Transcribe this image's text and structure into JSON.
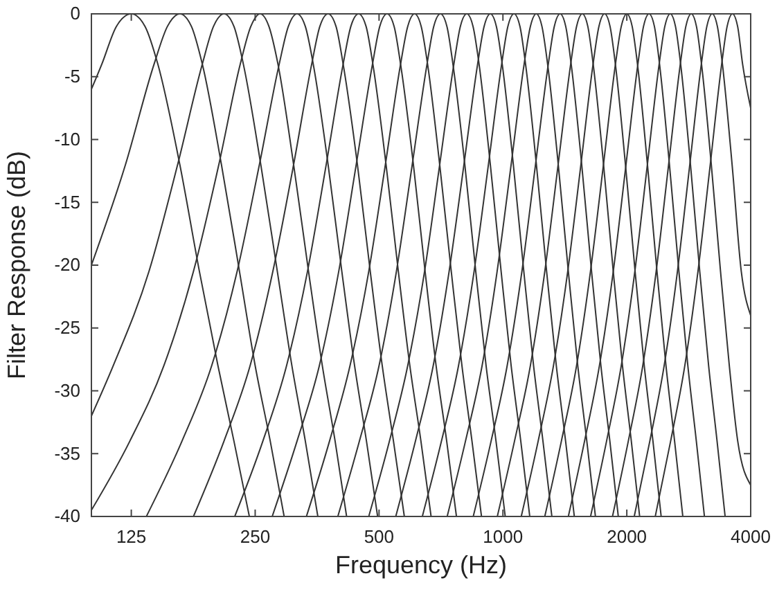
{
  "chart_data": {
    "type": "line",
    "xlabel": "Frequency (Hz)",
    "ylabel": "Filter Response (dB)",
    "log": "x",
    "xlim": [
      100,
      4000
    ],
    "xticks": [
      125,
      250,
      500,
      1000,
      2000,
      4000
    ],
    "ylim": [
      -40,
      0
    ],
    "yticks": [
      -40,
      -35,
      -30,
      -25,
      -20,
      -15,
      -10,
      -5,
      0
    ],
    "line_style": "solid",
    "series": [
      {
        "color": "#333333",
        "x": [
          100,
          106,
          115,
          125,
          135,
          145,
          164,
          183,
          203,
          222,
          242
        ],
        "values": [
          -6,
          -4,
          -1,
          0,
          -1,
          -4,
          -12,
          -20.5,
          -28,
          -34,
          -40
        ]
      },
      {
        "color": "#333333",
        "x": [
          100,
          121,
          142,
          153,
          164,
          175,
          186,
          207,
          229,
          250,
          272,
          294
        ],
        "values": [
          -20,
          -12,
          -4,
          -1,
          0,
          -1,
          -4,
          -12,
          -20.5,
          -28,
          -34,
          -40
        ]
      },
      {
        "color": "#333333",
        "x": [
          100,
          113,
          138,
          162,
          186,
          198,
          210,
          222,
          234,
          258,
          283,
          307,
          331,
          355
        ],
        "values": [
          -32,
          -28,
          -20.5,
          -12,
          -4,
          -1,
          0,
          -1,
          -4,
          -12,
          -20.5,
          -28,
          -34,
          -40
        ]
      },
      {
        "color": "#333333",
        "x": [
          100,
          124,
          150,
          177,
          204,
          230,
          244,
          257,
          270,
          284,
          310,
          337,
          364,
          391,
          417
        ],
        "values": [
          -39.5,
          -34,
          -28,
          -20.5,
          -12,
          -4,
          -1,
          0,
          -1,
          -4,
          -12,
          -20.5,
          -28,
          -34,
          -40
        ]
      },
      {
        "color": "#333333",
        "x": [
          136,
          166,
          196,
          226,
          256,
          286,
          301,
          316,
          331,
          346,
          376,
          406,
          436,
          466,
          496
        ],
        "values": [
          -40,
          -34,
          -28,
          -20.5,
          -12,
          -4,
          -1,
          0,
          -1,
          -4,
          -12,
          -20.5,
          -28,
          -34,
          -40
        ]
      },
      {
        "color": "#333333",
        "x": [
          177,
          210,
          243,
          276,
          310,
          343,
          359,
          376,
          393,
          409,
          443,
          476,
          509,
          542,
          576
        ],
        "values": [
          -40,
          -34,
          -28,
          -20.5,
          -12,
          -4,
          -1,
          0,
          -1,
          -4,
          -12,
          -20.5,
          -28,
          -34,
          -40
        ]
      },
      {
        "color": "#333333",
        "x": [
          223,
          261,
          298,
          335,
          372,
          409,
          427,
          446,
          465,
          483,
          520,
          557,
          594,
          632,
          669
        ],
        "values": [
          -40,
          -34,
          -28,
          -20.5,
          -12,
          -4,
          -1,
          0,
          -1,
          -4,
          -12,
          -20.5,
          -28,
          -34,
          -40
        ]
      },
      {
        "color": "#333333",
        "x": [
          275,
          316,
          358,
          399,
          440,
          482,
          502,
          523,
          544,
          564,
          606,
          647,
          688,
          730,
          771
        ],
        "values": [
          -40,
          -34,
          -28,
          -20.5,
          -12,
          -4,
          -1,
          0,
          -1,
          -4,
          -12,
          -20.5,
          -28,
          -34,
          -40
        ]
      },
      {
        "color": "#333333",
        "x": [
          333,
          379,
          425,
          472,
          518,
          564,
          587,
          610,
          633,
          656,
          702,
          749,
          795,
          841,
          887
        ],
        "values": [
          -40,
          -34,
          -28,
          -20.5,
          -12,
          -4,
          -1,
          0,
          -1,
          -4,
          -12,
          -20.5,
          -28,
          -34,
          -40
        ]
      },
      {
        "color": "#333333",
        "x": [
          397,
          448,
          500,
          551,
          602,
          654,
          679,
          705,
          731,
          756,
          808,
          859,
          910,
          962,
          1013
        ],
        "values": [
          -40,
          -34,
          -28,
          -20.5,
          -12,
          -4,
          -1,
          0,
          -1,
          -4,
          -12,
          -20.5,
          -28,
          -34,
          -40
        ]
      },
      {
        "color": "#333333",
        "x": [
          472,
          530,
          587,
          645,
          702,
          760,
          788,
          817,
          846,
          875,
          932,
          990,
          1047,
          1105,
          1162
        ],
        "values": [
          -40,
          -34,
          -28,
          -20.5,
          -12,
          -4,
          -1,
          0,
          -1,
          -4,
          -12,
          -20.5,
          -28,
          -34,
          -40
        ]
      },
      {
        "color": "#333333",
        "x": [
          549,
          613,
          677,
          740,
          804,
          868,
          900,
          932,
          964,
          996,
          1060,
          1124,
          1187,
          1251,
          1315
        ],
        "values": [
          -40,
          -34,
          -28,
          -20.5,
          -12,
          -4,
          -1,
          0,
          -1,
          -4,
          -12,
          -20.5,
          -28,
          -34,
          -40
        ]
      },
      {
        "color": "#333333",
        "x": [
          637,
          709,
          780,
          851,
          922,
          993,
          1028,
          1064,
          1100,
          1135,
          1206,
          1277,
          1348,
          1420,
          1491
        ],
        "values": [
          -40,
          -34,
          -28,
          -20.5,
          -12,
          -4,
          -1,
          0,
          -1,
          -4,
          -12,
          -20.5,
          -28,
          -34,
          -40
        ]
      },
      {
        "color": "#333333",
        "x": [
          732,
          811,
          890,
          968,
          1047,
          1126,
          1166,
          1205,
          1244,
          1284,
          1363,
          1442,
          1520,
          1599,
          1678
        ],
        "values": [
          -40,
          -34,
          -28,
          -20.5,
          -12,
          -4,
          -1,
          0,
          -1,
          -4,
          -12,
          -20.5,
          -28,
          -34,
          -40
        ]
      },
      {
        "color": "#333333",
        "x": [
          847,
          936,
          1024,
          1112,
          1200,
          1289,
          1333,
          1377,
          1421,
          1465,
          1554,
          1642,
          1730,
          1819,
          1907
        ],
        "values": [
          -40,
          -34,
          -28,
          -20.5,
          -12,
          -4,
          -1,
          0,
          -1,
          -4,
          -12,
          -20.5,
          -28,
          -34,
          -40
        ]
      },
      {
        "color": "#333333",
        "x": [
          969,
          1067,
          1166,
          1264,
          1362,
          1461,
          1510,
          1559,
          1608,
          1657,
          1756,
          1854,
          1952,
          2051,
          2149
        ],
        "values": [
          -40,
          -34,
          -28,
          -20.5,
          -12,
          -4,
          -1,
          0,
          -1,
          -4,
          -12,
          -20.5,
          -28,
          -34,
          -40
        ]
      },
      {
        "color": "#333333",
        "x": [
          1108,
          1218,
          1327,
          1437,
          1547,
          1656,
          1711,
          1766,
          1821,
          1876,
          1985,
          2095,
          2205,
          2315,
          2424
        ],
        "values": [
          -40,
          -34,
          -28,
          -20.5,
          -12,
          -4,
          -1,
          0,
          -1,
          -4,
          -12,
          -20.5,
          -28,
          -34,
          -40
        ]
      },
      {
        "color": "#333333",
        "x": [
          1264,
          1387,
          1510,
          1632,
          1755,
          1877,
          1939,
          2000,
          2061,
          2123,
          2245,
          2368,
          2490,
          2613,
          2736
        ],
        "values": [
          -40,
          -34,
          -28,
          -20.5,
          -12,
          -4,
          -1,
          0,
          -1,
          -4,
          -12,
          -20.5,
          -28,
          -34,
          -40
        ]
      },
      {
        "color": "#333333",
        "x": [
          1442,
          1579,
          1716,
          1854,
          1991,
          2128,
          2196,
          2265,
          2334,
          2402,
          2539,
          2677,
          2814,
          2951,
          3088
        ],
        "values": [
          -40,
          -34,
          -28,
          -20.5,
          -12,
          -4,
          -1,
          0,
          -1,
          -4,
          -12,
          -20.5,
          -28,
          -34,
          -40
        ]
      },
      {
        "color": "#333333",
        "x": [
          1633,
          1786,
          1939,
          2092,
          2244,
          2397,
          2474,
          2550,
          2626,
          2703,
          2856,
          3008,
          3161,
          3314,
          3467
        ],
        "values": [
          -40,
          -34,
          -28,
          -20.5,
          -12,
          -4,
          -1,
          0,
          -1,
          -4,
          -12,
          -20.5,
          -28,
          -34,
          -40
        ]
      },
      {
        "color": "#333333",
        "x": [
          1846,
          2017,
          2187,
          2357,
          2527,
          2698,
          2783,
          2868,
          2953,
          3038,
          3209,
          3379,
          3549,
          3720,
          4000
        ],
        "values": [
          -40,
          -34,
          -28,
          -20.5,
          -12,
          -4,
          -1,
          0,
          -1,
          -4,
          -12,
          -20.5,
          -28,
          -34,
          -37.5
        ]
      },
      {
        "color": "#333333",
        "x": [
          2085,
          2275,
          2465,
          2655,
          2845,
          3035,
          3130,
          3225,
          3320,
          3415,
          3605,
          3795,
          4000
        ],
        "values": [
          -40,
          -34,
          -28,
          -20.5,
          -12,
          -4,
          -1,
          0,
          -1,
          -4,
          -12,
          -20.5,
          -24
        ]
      },
      {
        "color": "#333333",
        "x": [
          2345,
          2556,
          2767,
          2978,
          3190,
          3401,
          3506,
          3612,
          3718,
          3823,
          4000
        ],
        "values": [
          -40,
          -34,
          -28,
          -20.5,
          -12,
          -4,
          -1,
          0,
          -1,
          -4,
          -7.5
        ]
      }
    ]
  }
}
